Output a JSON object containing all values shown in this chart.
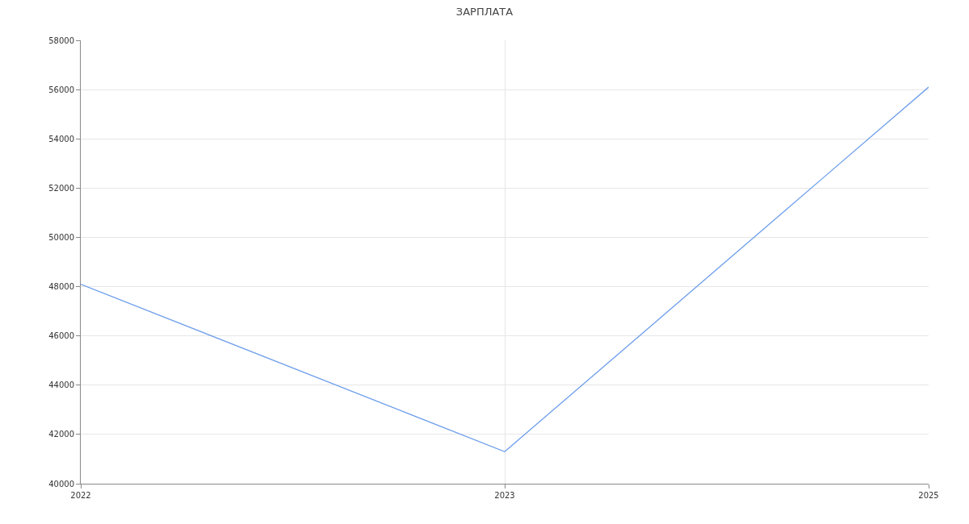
{
  "chart_data": {
    "type": "line",
    "title": "ЗАРПЛАТА",
    "categories": [
      "2022",
      "2023",
      "2025"
    ],
    "series": [
      {
        "color": "#6d9eeb",
        "values": [
          48100,
          41300,
          56100
        ]
      }
    ],
    "ylim": [
      40000,
      58000
    ],
    "yticks": [
      40000,
      42000,
      44000,
      46000,
      48000,
      50000,
      52000,
      54000,
      56000,
      58000
    ],
    "grid": true,
    "marker": "none",
    "line_style": "solid"
  }
}
